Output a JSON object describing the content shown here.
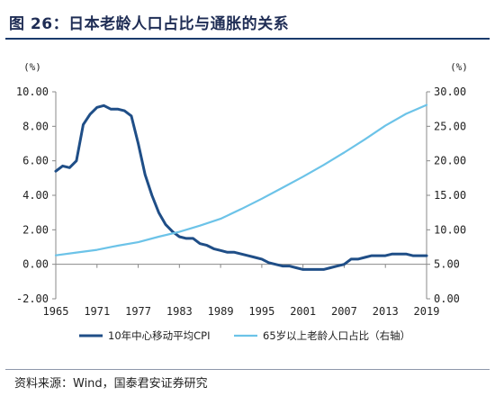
{
  "title": "图 26：日本老龄人口占比与通胀的关系",
  "source": "资料来源：Wind，国泰君安证券研究",
  "chart_data": {
    "type": "line",
    "left_unit": "(%)",
    "right_unit": "(%)",
    "y_left": {
      "ticks": [
        "10.00",
        "8.00",
        "6.00",
        "4.00",
        "2.00",
        "0.00",
        "-2.00"
      ],
      "range": [
        -2,
        10
      ]
    },
    "y_right": {
      "ticks": [
        "30.00",
        "25.00",
        "20.00",
        "15.00",
        "10.00",
        "5.00",
        "0.00"
      ],
      "range": [
        0,
        30
      ]
    },
    "x_ticks": [
      "1965",
      "1971",
      "1977",
      "1983",
      "1989",
      "1995",
      "2001",
      "2007",
      "2013",
      "2019"
    ],
    "x_range": [
      1965,
      2019
    ],
    "series": [
      {
        "name": "10年中心移动平均CPI",
        "axis": "left",
        "color": "#1f4e87",
        "x": [
          1965,
          1966,
          1967,
          1968,
          1969,
          1970,
          1971,
          1972,
          1973,
          1974,
          1975,
          1976,
          1977,
          1978,
          1979,
          1980,
          1981,
          1982,
          1983,
          1984,
          1985,
          1986,
          1987,
          1988,
          1989,
          1990,
          1991,
          1992,
          1993,
          1994,
          1995,
          1996,
          1997,
          1998,
          1999,
          2000,
          2001,
          2002,
          2003,
          2004,
          2005,
          2006,
          2007,
          2008,
          2009,
          2010,
          2011,
          2012,
          2013,
          2014,
          2015,
          2016,
          2017,
          2018,
          2019
        ],
        "values": [
          5.4,
          5.7,
          5.6,
          6.0,
          8.1,
          8.7,
          9.1,
          9.2,
          9.0,
          9.0,
          8.9,
          8.6,
          7.0,
          5.2,
          4.0,
          3.0,
          2.3,
          1.9,
          1.6,
          1.5,
          1.5,
          1.2,
          1.1,
          0.9,
          0.8,
          0.7,
          0.7,
          0.6,
          0.5,
          0.4,
          0.3,
          0.1,
          0.0,
          -0.1,
          -0.1,
          -0.2,
          -0.3,
          -0.3,
          -0.3,
          -0.3,
          -0.2,
          -0.1,
          0.0,
          0.3,
          0.3,
          0.4,
          0.5,
          0.5,
          0.5,
          0.6,
          0.6,
          0.6,
          0.5,
          0.5,
          0.5
        ]
      },
      {
        "name": "65岁以上老龄人口占比（右轴）",
        "axis": "right",
        "color": "#6cc3e8",
        "x": [
          1965,
          1968,
          1971,
          1974,
          1977,
          1980,
          1983,
          1986,
          1989,
          1992,
          1995,
          1998,
          2001,
          2004,
          2007,
          2010,
          2013,
          2016,
          2019
        ],
        "values": [
          6.3,
          6.7,
          7.1,
          7.7,
          8.2,
          9.0,
          9.7,
          10.6,
          11.6,
          13.0,
          14.5,
          16.1,
          17.7,
          19.4,
          21.2,
          23.1,
          25.1,
          26.8,
          28.1
        ]
      }
    ],
    "legend_position": "bottom",
    "grid": false
  }
}
